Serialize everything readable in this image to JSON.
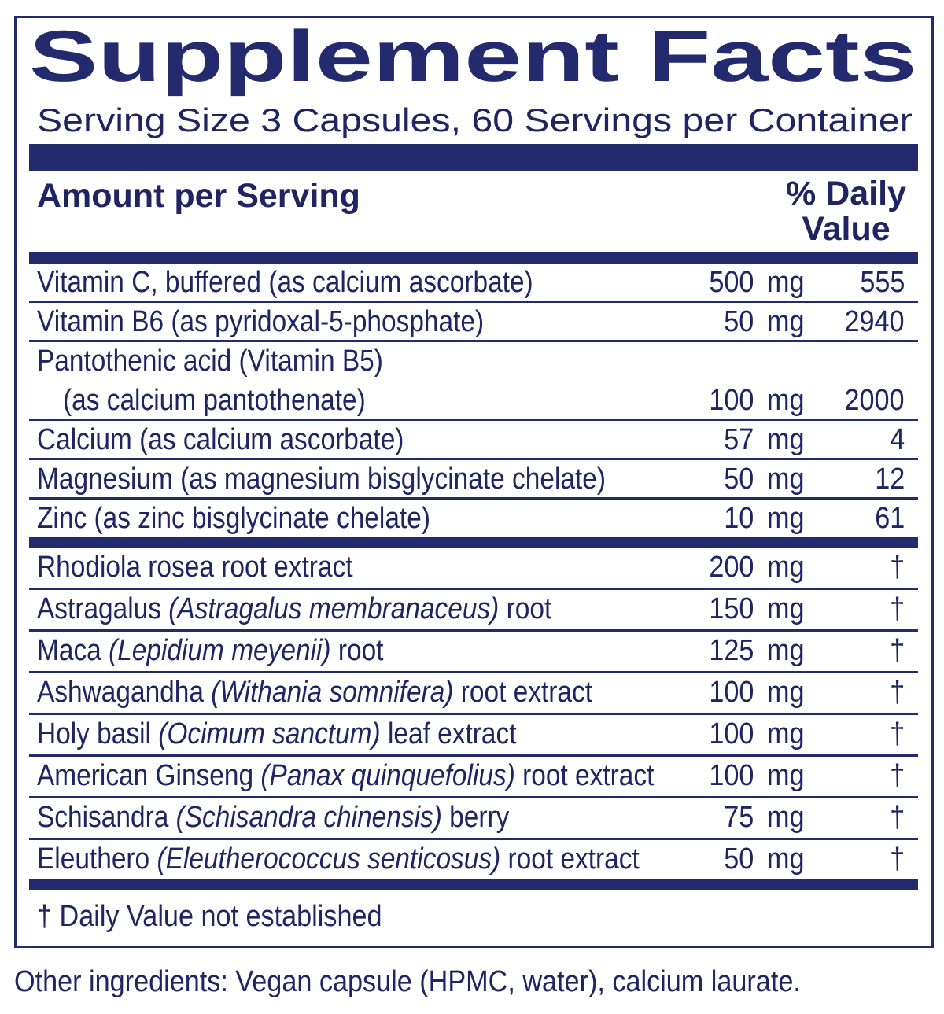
{
  "title": "Supplement Facts",
  "serving": "Serving Size 3 Capsules, 60 Servings per Container",
  "header": {
    "amount": "Amount per Serving",
    "daily_value": "% Daily Value"
  },
  "vitamins": [
    {
      "name": "Vitamin C, buffered (as calcium ascorbate)",
      "amount": "500",
      "unit": "mg",
      "dv": "555"
    },
    {
      "name": "Vitamin B6 (as pyridoxal-5-phosphate)",
      "amount": "50",
      "unit": "mg",
      "dv": "2940"
    },
    {
      "name": "Pantothenic acid (Vitamin B5)",
      "detail": "(as calcium pantothenate)",
      "amount": "100",
      "unit": "mg",
      "dv": "2000"
    },
    {
      "name": "Calcium (as calcium ascorbate)",
      "amount": "57",
      "unit": "mg",
      "dv": "4"
    },
    {
      "name": "Magnesium (as magnesium bisglycinate chelate)",
      "amount": "50",
      "unit": "mg",
      "dv": "12"
    },
    {
      "name": "Zinc (as zinc bisglycinate chelate)",
      "amount": "10",
      "unit": "mg",
      "dv": "61"
    }
  ],
  "botanicals": [
    {
      "name": "Rhodiola rosea root extract",
      "amount": "200",
      "unit": "mg",
      "dv": "†"
    },
    {
      "name": "Astragalus",
      "latin": "(Astragalus membranaceus)",
      "part": "root",
      "amount": "150",
      "unit": "mg",
      "dv": "†"
    },
    {
      "name": "Maca",
      "latin": "(Lepidium meyenii)",
      "part": "root",
      "amount": "125",
      "unit": "mg",
      "dv": "†"
    },
    {
      "name": "Ashwagandha",
      "latin": "(Withania somnifera)",
      "part": "root extract",
      "amount": "100",
      "unit": "mg",
      "dv": "†"
    },
    {
      "name": "Holy basil",
      "latin": "(Ocimum sanctum)",
      "part": "leaf extract",
      "amount": "100",
      "unit": "mg",
      "dv": "†"
    },
    {
      "name": "American Ginseng",
      "latin": "(Panax quinquefolius)",
      "part": "root extract",
      "amount": "100",
      "unit": "mg",
      "dv": "†"
    },
    {
      "name": "Schisandra",
      "latin": "(Schisandra chinensis)",
      "part": "berry",
      "amount": "75",
      "unit": "mg",
      "dv": "†"
    },
    {
      "name": "Eleuthero",
      "latin": "(Eleutherococcus senticosus)",
      "part": "root extract",
      "amount": "50",
      "unit": "mg",
      "dv": "†"
    }
  ],
  "footnote": "† Daily Value not established",
  "other_ingredients": "Other ingredients: Vegan capsule (HPMC, water), calcium laurate."
}
